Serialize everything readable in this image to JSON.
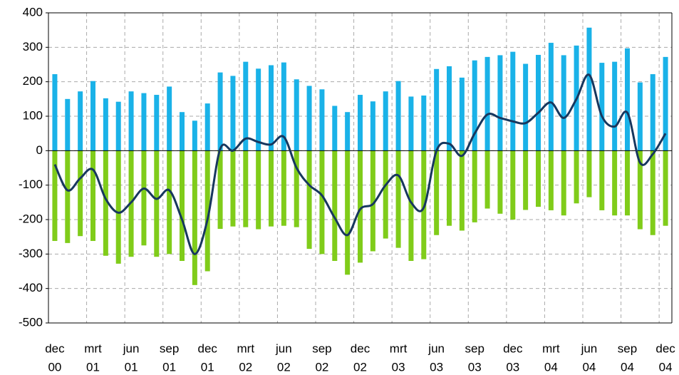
{
  "chart_data": {
    "type": "bar",
    "categories": [
      [
        "dec",
        "00"
      ],
      null,
      null,
      [
        "mrt",
        "01"
      ],
      null,
      null,
      [
        "jun",
        "01"
      ],
      null,
      null,
      [
        "sep",
        "01"
      ],
      null,
      null,
      [
        "dec",
        "01"
      ],
      null,
      null,
      [
        "mrt",
        "02"
      ],
      null,
      null,
      [
        "jun",
        "02"
      ],
      null,
      null,
      [
        "sep",
        "02"
      ],
      null,
      null,
      [
        "dec",
        "02"
      ],
      null,
      null,
      [
        "mrt",
        "03"
      ],
      null,
      null,
      [
        "jun",
        "03"
      ],
      null,
      null,
      [
        "sep",
        "03"
      ],
      null,
      null,
      [
        "dec",
        "03"
      ],
      null,
      null,
      [
        "mrt",
        "04"
      ],
      null,
      null,
      [
        "jun",
        "04"
      ],
      null,
      null,
      [
        "sep",
        "04"
      ],
      null,
      null,
      [
        "dec",
        "04"
      ]
    ],
    "series": [
      {
        "color": "#1ab2e8",
        "values": [
          222,
          150,
          172,
          202,
          152,
          142,
          172,
          167,
          162,
          186,
          112,
          87,
          137,
          227,
          217,
          258,
          238,
          248,
          256,
          207,
          188,
          178,
          130,
          112,
          162,
          143,
          172,
          202,
          157,
          160,
          237,
          245,
          212,
          262,
          272,
          277,
          287,
          252,
          278,
          313,
          277,
          305,
          357,
          255,
          258,
          297,
          198,
          222,
          272
        ]
      },
      {
        "color": "#80cc1a",
        "values": [
          -262,
          -268,
          -248,
          -262,
          -305,
          -328,
          -308,
          -275,
          -308,
          -300,
          -320,
          -390,
          -350,
          -227,
          -220,
          -222,
          -228,
          -220,
          -218,
          -222,
          -285,
          -300,
          -320,
          -360,
          -325,
          -292,
          -255,
          -282,
          -320,
          -315,
          -245,
          -218,
          -232,
          -208,
          -168,
          -183,
          -200,
          -172,
          -163,
          -173,
          -188,
          -153,
          -135,
          -173,
          -188,
          -188,
          -228,
          -245,
          -218
        ]
      },
      {
        "type": "line",
        "color": "#17375e",
        "values": [
          -40,
          -115,
          -80,
          -55,
          -140,
          -180,
          -150,
          -110,
          -140,
          -115,
          -200,
          -300,
          -200,
          5,
          0,
          35,
          25,
          18,
          40,
          -50,
          -100,
          -130,
          -195,
          -245,
          -170,
          -155,
          -100,
          -72,
          -150,
          -165,
          0,
          20,
          -15,
          50,
          105,
          95,
          85,
          80,
          110,
          140,
          95,
          150,
          220,
          100,
          70,
          110,
          -35,
          -10,
          50
        ]
      }
    ],
    "ylim": [
      -500,
      400
    ],
    "yticks": [
      -500,
      -400,
      -300,
      -200,
      -100,
      0,
      100,
      200,
      300,
      400
    ],
    "grid": true
  }
}
